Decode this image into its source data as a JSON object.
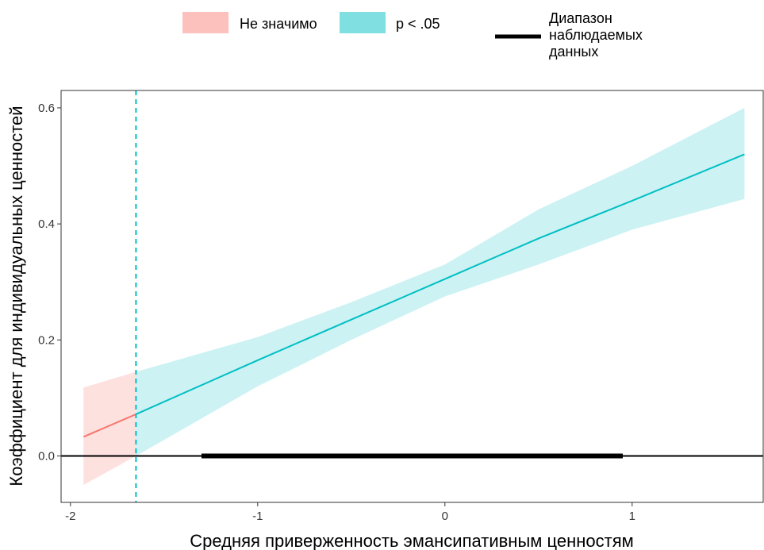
{
  "colors": {
    "not_significant": "#F8766D",
    "significant": "#00BFC4",
    "not_significant_band": "#F8766D",
    "significant_band": "#00BFC4",
    "observed_range": "#000000"
  },
  "legend": {
    "not_significant_label": "Не значимо",
    "significant_label": "p < .05",
    "observed_range_label": [
      "Диапазон",
      "наблюдаемых",
      "данных"
    ]
  },
  "chart_data": {
    "type": "line",
    "xlabel": "Средняя приверженность эмансипативным ценностям",
    "ylabel": "Коэффициент для индивидуальных ценностей",
    "xlim": [
      -2.05,
      1.7
    ],
    "ylim": [
      -0.08,
      0.63
    ],
    "x_ticks": [
      -2,
      -1,
      0,
      1
    ],
    "x_tick_labels": [
      "-2",
      "-1",
      "0",
      "1"
    ],
    "y_ticks": [
      0.0,
      0.2,
      0.4,
      0.6
    ],
    "y_tick_labels": [
      "0.0",
      "0.2",
      "0.4",
      "0.6"
    ],
    "grid": false,
    "legend_position": "top",
    "significance_threshold_x": -1.65,
    "series": [
      {
        "name": "Не значимо",
        "x": [
          -1.93,
          -1.65
        ],
        "y": [
          0.033,
          0.072
        ],
        "lower": [
          -0.05,
          0.0
        ],
        "upper": [
          0.118,
          0.145
        ]
      },
      {
        "name": "p < .05",
        "x": [
          -1.65,
          -1.0,
          -0.5,
          0.0,
          0.5,
          1.0,
          1.6
        ],
        "y": [
          0.072,
          0.165,
          0.235,
          0.305,
          0.375,
          0.44,
          0.52
        ],
        "lower": [
          0.0,
          0.12,
          0.2,
          0.275,
          0.33,
          0.39,
          0.443
        ],
        "upper": [
          0.145,
          0.205,
          0.265,
          0.33,
          0.425,
          0.5,
          0.6
        ]
      }
    ],
    "observed_range": {
      "x": [
        -1.3,
        0.95
      ],
      "y": 0.0
    },
    "reference_line_y": 0.0
  }
}
